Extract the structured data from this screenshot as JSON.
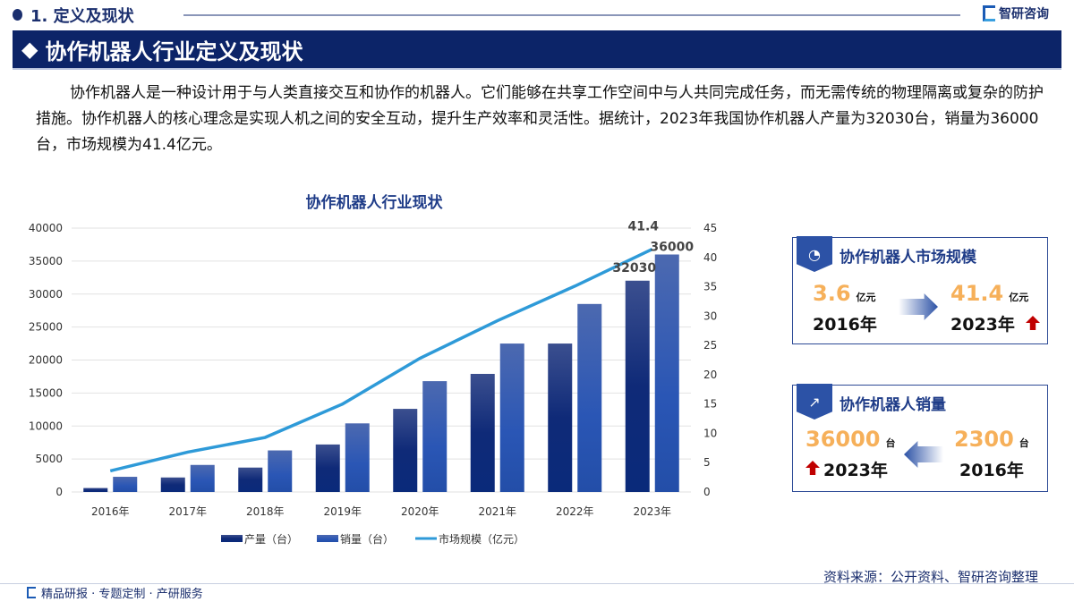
{
  "header": {
    "section_title": "1. 定义及现状",
    "logo_text": "智研咨询"
  },
  "banner": {
    "title": "协作机器人行业定义及现状"
  },
  "paragraph": "协作机器人是一种设计用于与人类直接交互和协作的机器人。它们能够在共享工作空间中与人共同完成任务，而无需传统的物理隔离或复杂的防护措施。协作机器人的核心理念是实现人机之间的安全互动，提升生产效率和灵活性。据统计，2023年我国协作机器人产量为32030台，销量为36000台，市场规模为41.4亿元。",
  "chart_data": {
    "type": "bar",
    "title": "协作机器人行业现状",
    "categories": [
      "2016年",
      "2017年",
      "2018年",
      "2019年",
      "2020年",
      "2021年",
      "2022年",
      "2023年"
    ],
    "series": [
      {
        "name": "产量（台）",
        "type": "bar",
        "axis": "left",
        "values": [
          600,
          2200,
          3700,
          7200,
          12600,
          17900,
          22500,
          32030
        ],
        "color": "#0f2a78"
      },
      {
        "name": "销量（台）",
        "type": "bar",
        "axis": "left",
        "values": [
          2300,
          4100,
          6300,
          10400,
          16800,
          22500,
          28500,
          36000
        ],
        "color": "#2f5bb5"
      },
      {
        "name": "市场规模（亿元）",
        "type": "line",
        "axis": "right",
        "values": [
          3.6,
          6.8,
          9.3,
          15.0,
          22.8,
          29.2,
          35.1,
          41.4
        ],
        "color": "#2e9ad8"
      }
    ],
    "data_labels": {
      "prod_2023": "32030",
      "sales_2023": "36000",
      "market_2023": "41.4"
    },
    "ylim_left": [
      0,
      40000
    ],
    "yticks_left": [
      "0",
      "5000",
      "10000",
      "15000",
      "20000",
      "25000",
      "30000",
      "35000",
      "40000"
    ],
    "ylim_right": [
      0,
      45
    ],
    "yticks_right": [
      "0",
      "5",
      "10",
      "15",
      "20",
      "25",
      "30",
      "35",
      "40",
      "45"
    ],
    "grid": true,
    "legend": "bottom"
  },
  "cards": [
    {
      "title": "协作机器人市场规模",
      "icon": "pie-chart-icon",
      "from_value": "3.6",
      "from_unit": "亿元",
      "from_year": "2016年",
      "to_value": "41.4",
      "to_unit": "亿元",
      "to_year": "2023年"
    },
    {
      "title": "协作机器人销量",
      "icon": "bar-growth-icon",
      "from_value": "2300",
      "from_unit": "台",
      "from_year": "2016年",
      "to_value": "36000",
      "to_unit": "台",
      "to_year": "2023年"
    }
  ],
  "source": "资料来源：公开资料、智研咨询整理",
  "footer": "精品研报 · 专题定制 · 产研服务"
}
